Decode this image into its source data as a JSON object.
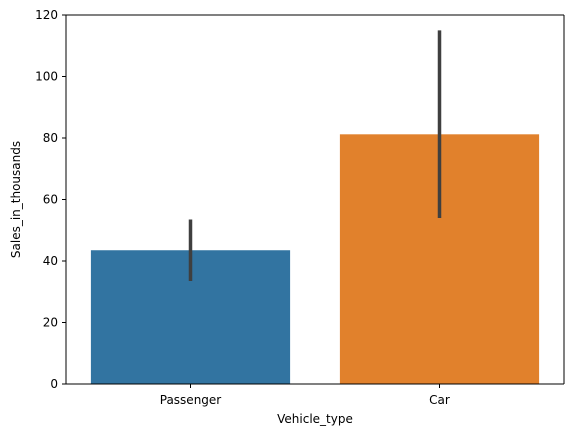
{
  "chart_data": {
    "type": "bar",
    "title": "",
    "xlabel": "Vehicle_type",
    "ylabel": "Sales_in_thousands",
    "categories": [
      "Passenger",
      "Car"
    ],
    "values": [
      43.5,
      81.2
    ],
    "error_bars": [
      {
        "low": 33.5,
        "high": 53.5
      },
      {
        "low": 54.0,
        "high": 115.0
      }
    ],
    "colors": [
      "#3274a1",
      "#e1812c"
    ],
    "error_bar_color": "#3f3f3f",
    "ylim": [
      0,
      120
    ],
    "yticks": [
      0,
      20,
      40,
      60,
      80,
      100,
      120
    ],
    "ytick_labels": [
      "0",
      "20",
      "40",
      "60",
      "80",
      "100",
      "120"
    ],
    "grid": false,
    "legend": "none"
  }
}
